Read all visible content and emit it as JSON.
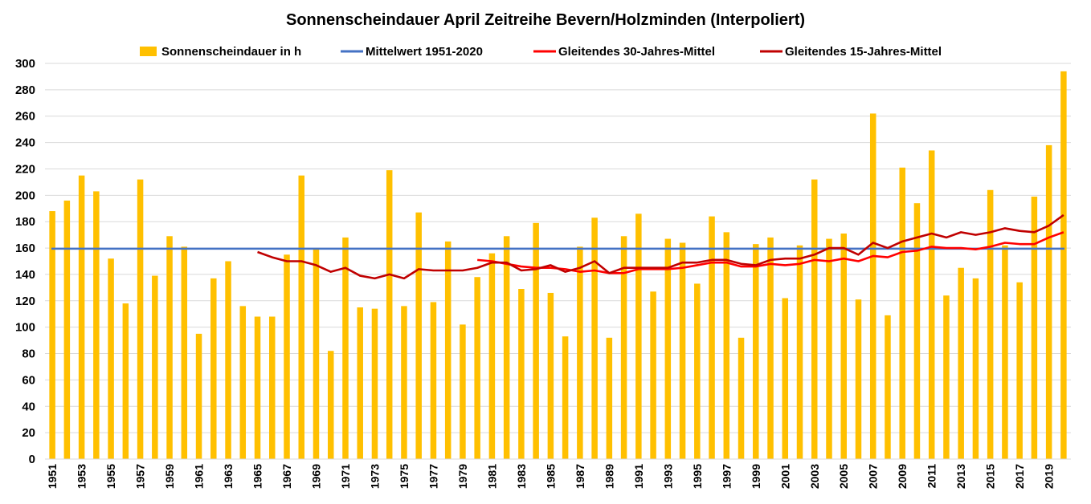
{
  "chart_data": {
    "type": "bar",
    "title": "Sonnenscheindauer April Zeitreihe Bevern/Holzminden (Interpoliert)",
    "xlabel": "",
    "ylabel": "",
    "ylim": [
      0,
      300
    ],
    "yticks": [
      0,
      20,
      40,
      60,
      80,
      100,
      120,
      140,
      160,
      180,
      200,
      220,
      240,
      260,
      280,
      300
    ],
    "grid": true,
    "legend_position": "top",
    "categories": [
      1951,
      1952,
      1953,
      1954,
      1955,
      1956,
      1957,
      1958,
      1959,
      1960,
      1961,
      1962,
      1963,
      1964,
      1965,
      1966,
      1967,
      1968,
      1969,
      1970,
      1971,
      1972,
      1973,
      1974,
      1975,
      1976,
      1977,
      1978,
      1979,
      1980,
      1981,
      1982,
      1983,
      1984,
      1985,
      1986,
      1987,
      1988,
      1989,
      1990,
      1991,
      1992,
      1993,
      1994,
      1995,
      1996,
      1997,
      1998,
      1999,
      2000,
      2001,
      2002,
      2003,
      2004,
      2005,
      2006,
      2007,
      2008,
      2009,
      2010,
      2011,
      2012,
      2013,
      2014,
      2015,
      2016,
      2017,
      2018,
      2019,
      2020
    ],
    "x_tick_labels": [
      "1951",
      "1953",
      "1955",
      "1957",
      "1959",
      "1961",
      "1963",
      "1965",
      "1967",
      "1969",
      "1971",
      "1973",
      "1975",
      "1977",
      "1979",
      "1981",
      "1983",
      "1985",
      "1987",
      "1989",
      "1991",
      "1993",
      "1995",
      "1997",
      "1999",
      "2001",
      "2003",
      "2005",
      "2007",
      "2009",
      "2011",
      "2013",
      "2015",
      "2017",
      "2019"
    ],
    "series": [
      {
        "name": "Sonnenscheindauer in h",
        "kind": "bar",
        "color": "#FFC000",
        "values": [
          188,
          196,
          215,
          203,
          152,
          118,
          212,
          139,
          169,
          161,
          95,
          137,
          150,
          116,
          108,
          108,
          155,
          215,
          159,
          82,
          168,
          115,
          114,
          219,
          116,
          187,
          119,
          165,
          102,
          138,
          156,
          169,
          129,
          179,
          126,
          93,
          161,
          183,
          92,
          169,
          186,
          127,
          167,
          164,
          133,
          184,
          172,
          92,
          163,
          168,
          122,
          162,
          212,
          167,
          171,
          121,
          262,
          109,
          221,
          194,
          234,
          124,
          145,
          137,
          204,
          162,
          134,
          199,
          238,
          294
        ]
      },
      {
        "name": "Mittelwert 1951-2020",
        "kind": "line",
        "color": "#4472C4",
        "value": 159.5
      },
      {
        "name": "Gleitendes 30-Jahres-Mittel",
        "kind": "line",
        "color": "#FF0000",
        "values": [
          null,
          null,
          null,
          null,
          null,
          null,
          null,
          null,
          null,
          null,
          null,
          null,
          null,
          null,
          null,
          null,
          null,
          null,
          null,
          null,
          null,
          null,
          null,
          null,
          null,
          null,
          null,
          null,
          null,
          151,
          150,
          148,
          146,
          145,
          145,
          144,
          142,
          143,
          141,
          141,
          144,
          144,
          144,
          145,
          147,
          149,
          149,
          146,
          146,
          148,
          147,
          148,
          151,
          150,
          152,
          150,
          154,
          153,
          157,
          158,
          161,
          160,
          160,
          159,
          161,
          164,
          163,
          163,
          168,
          172
        ]
      },
      {
        "name": "Gleitendes 15-Jahres-Mittel",
        "kind": "line",
        "color": "#C00000",
        "values": [
          null,
          null,
          null,
          null,
          null,
          null,
          null,
          null,
          null,
          null,
          null,
          null,
          null,
          null,
          157,
          153,
          150,
          150,
          147,
          142,
          145,
          139,
          137,
          140,
          137,
          144,
          143,
          143,
          143,
          145,
          149,
          149,
          143,
          144,
          147,
          142,
          145,
          150,
          141,
          145,
          145,
          145,
          145,
          149,
          149,
          151,
          151,
          148,
          147,
          151,
          152,
          152,
          155,
          160,
          160,
          155,
          164,
          160,
          165,
          168,
          171,
          168,
          172,
          170,
          172,
          175,
          173,
          172,
          177,
          185
        ]
      }
    ]
  }
}
